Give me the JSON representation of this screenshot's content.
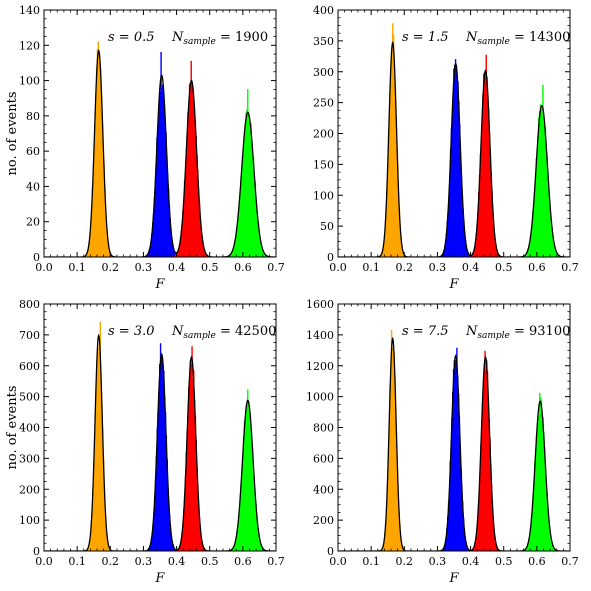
{
  "chart_data": [
    {
      "type": "area",
      "annotation": {
        "s": "s = 0.5",
        "n": "N",
        "n_sub": "sample",
        "n_rest": " = 1900"
      },
      "xlabel": "F",
      "ylabel": "no. of events",
      "xlim": [
        0.0,
        0.7
      ],
      "ylim": [
        0,
        140
      ],
      "xticks": [
        "0.0",
        "0.1",
        "0.2",
        "0.3",
        "0.4",
        "0.5",
        "0.6",
        "0.7"
      ],
      "yticks": [
        "0",
        "20",
        "40",
        "60",
        "80",
        "100",
        "120",
        "140"
      ],
      "series": [
        {
          "color": "#ffa500",
          "mu": 0.165,
          "sigma": 0.0125,
          "fit_peak": 117,
          "hist_peak": 122
        },
        {
          "color": "#0000ff",
          "mu": 0.355,
          "sigma": 0.0145,
          "fit_peak": 103,
          "hist_peak": 116
        },
        {
          "color": "#ff0000",
          "mu": 0.445,
          "sigma": 0.0155,
          "fit_peak": 100,
          "hist_peak": 111
        },
        {
          "color": "#00ff00",
          "mu": 0.615,
          "sigma": 0.0185,
          "fit_peak": 82,
          "hist_peak": 95
        }
      ]
    },
    {
      "type": "area",
      "annotation": {
        "s": "s = 1.5",
        "n": "N",
        "n_sub": "sample",
        "n_rest": " = 14300"
      },
      "xlabel": "F",
      "ylabel": "",
      "xlim": [
        0.0,
        0.7
      ],
      "ylim": [
        0,
        400
      ],
      "xticks": [
        "0.0",
        "0.1",
        "0.2",
        "0.3",
        "0.4",
        "0.5",
        "0.6",
        "0.7"
      ],
      "yticks": [
        "0",
        "50",
        "100",
        "150",
        "200",
        "250",
        "300",
        "350",
        "400"
      ],
      "series": [
        {
          "color": "#ffa500",
          "mu": 0.165,
          "sigma": 0.0115,
          "fit_peak": 347,
          "hist_peak": 378
        },
        {
          "color": "#0000ff",
          "mu": 0.355,
          "sigma": 0.0135,
          "fit_peak": 313,
          "hist_peak": 320
        },
        {
          "color": "#ff0000",
          "mu": 0.445,
          "sigma": 0.0135,
          "fit_peak": 302,
          "hist_peak": 327
        },
        {
          "color": "#00ff00",
          "mu": 0.615,
          "sigma": 0.017,
          "fit_peak": 245,
          "hist_peak": 278
        }
      ]
    },
    {
      "type": "area",
      "annotation": {
        "s": "s = 3.0",
        "n": "N",
        "n_sub": "sample",
        "n_rest": " = 42500"
      },
      "xlabel": "F",
      "ylabel": "no. of events",
      "xlim": [
        0.0,
        0.7
      ],
      "ylim": [
        0,
        800
      ],
      "xticks": [
        "0.0",
        "0.1",
        "0.2",
        "0.3",
        "0.4",
        "0.5",
        "0.6",
        "0.7"
      ],
      "yticks": [
        "0",
        "100",
        "200",
        "300",
        "400",
        "500",
        "600",
        "700",
        "800"
      ],
      "series": [
        {
          "color": "#ffa500",
          "mu": 0.165,
          "sigma": 0.011,
          "fit_peak": 698,
          "hist_peak": 742
        },
        {
          "color": "#0000ff",
          "mu": 0.355,
          "sigma": 0.013,
          "fit_peak": 638,
          "hist_peak": 672
        },
        {
          "color": "#ff0000",
          "mu": 0.445,
          "sigma": 0.013,
          "fit_peak": 628,
          "hist_peak": 662
        },
        {
          "color": "#00ff00",
          "mu": 0.615,
          "sigma": 0.016,
          "fit_peak": 488,
          "hist_peak": 522
        }
      ]
    },
    {
      "type": "area",
      "annotation": {
        "s": "s = 7.5",
        "n": "N",
        "n_sub": "sample",
        "n_rest": " = 93100"
      },
      "xlabel": "F",
      "ylabel": "",
      "xlim": [
        0.0,
        0.7
      ],
      "ylim": [
        0,
        1600
      ],
      "xticks": [
        "0.0",
        "0.1",
        "0.2",
        "0.3",
        "0.4",
        "0.5",
        "0.6",
        "0.7"
      ],
      "yticks": [
        "0",
        "200",
        "400",
        "600",
        "800",
        "1000",
        "1200",
        "1400",
        "1600"
      ],
      "series": [
        {
          "color": "#ffa500",
          "mu": 0.165,
          "sigma": 0.0105,
          "fit_peak": 1375,
          "hist_peak": 1430
        },
        {
          "color": "#0000ff",
          "mu": 0.355,
          "sigma": 0.0125,
          "fit_peak": 1265,
          "hist_peak": 1315
        },
        {
          "color": "#ff0000",
          "mu": 0.445,
          "sigma": 0.0125,
          "fit_peak": 1255,
          "hist_peak": 1295
        },
        {
          "color": "#00ff00",
          "mu": 0.61,
          "sigma": 0.015,
          "fit_peak": 970,
          "hist_peak": 1022
        }
      ]
    }
  ]
}
